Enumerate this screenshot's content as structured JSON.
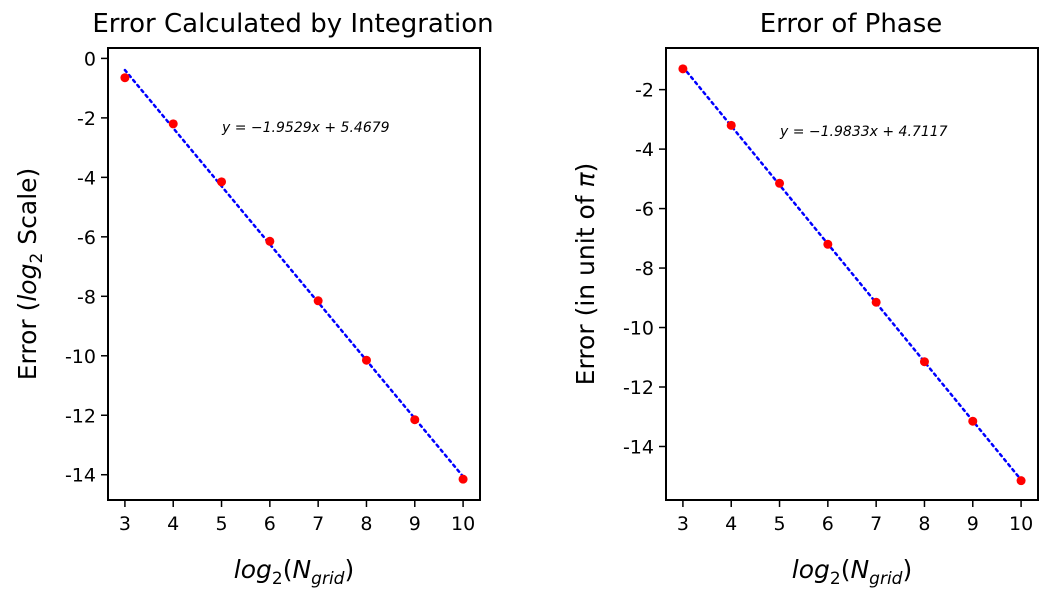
{
  "chart_data": [
    {
      "type": "scatter",
      "title": "Error Calculated by Integration",
      "xlabel": "log_2(N_grid)",
      "ylabel": "Error (log_2 Scale)",
      "xlim": [
        2.65,
        10.35
      ],
      "ylim": [
        -14.85,
        0.35
      ],
      "xticks": [
        3,
        4,
        5,
        6,
        7,
        8,
        9,
        10
      ],
      "yticks": [
        0,
        -2,
        -4,
        -6,
        -8,
        -10,
        -12,
        -14
      ],
      "series": [
        {
          "x": [
            3,
            4,
            5,
            6,
            7,
            8,
            9,
            10
          ],
          "y": [
            -0.65,
            -2.2,
            -4.15,
            -6.15,
            -8.15,
            -10.15,
            -12.15,
            -14.15
          ],
          "color": "#ff0000",
          "marker": "circle"
        }
      ],
      "fit_line": {
        "slope": -1.9529,
        "intercept": 5.4679,
        "x_range": [
          3,
          10
        ],
        "color": "#0000ff",
        "style": "dotted"
      },
      "annotation": "y = −1.9529x + 5.4679",
      "grid": false
    },
    {
      "type": "scatter",
      "title": "Error of Phase",
      "xlabel": "log_2(N_grid)",
      "ylabel": "Error (in unit of π)",
      "xlim": [
        2.65,
        10.35
      ],
      "ylim": [
        -15.8,
        -0.6
      ],
      "xticks": [
        3,
        4,
        5,
        6,
        7,
        8,
        9,
        10
      ],
      "yticks": [
        -2,
        -4,
        -6,
        -8,
        -10,
        -12,
        -14
      ],
      "series": [
        {
          "x": [
            3,
            4,
            5,
            6,
            7,
            8,
            9,
            10
          ],
          "y": [
            -1.3,
            -3.2,
            -5.15,
            -7.2,
            -9.15,
            -11.15,
            -13.15,
            -15.15
          ],
          "color": "#ff0000",
          "marker": "circle"
        }
      ],
      "fit_line": {
        "slope": -1.9833,
        "intercept": 4.7117,
        "x_range": [
          3,
          10
        ],
        "color": "#0000ff",
        "style": "dotted"
      },
      "annotation": "y = −1.9833x + 4.7117",
      "grid": false
    }
  ],
  "labels": {
    "xlabel_base": "log",
    "xlabel_sub": "2",
    "xlabel_arg": "N",
    "xlabel_arg_sub": "grid",
    "left_ylabel_pre": "Error (",
    "left_ylabel_log": "log",
    "left_ylabel_sub": "2",
    "left_ylabel_post": " Scale)",
    "right_ylabel_pre": "Error (in unit of ",
    "right_ylabel_pi": "π",
    "right_ylabel_post": ")"
  }
}
